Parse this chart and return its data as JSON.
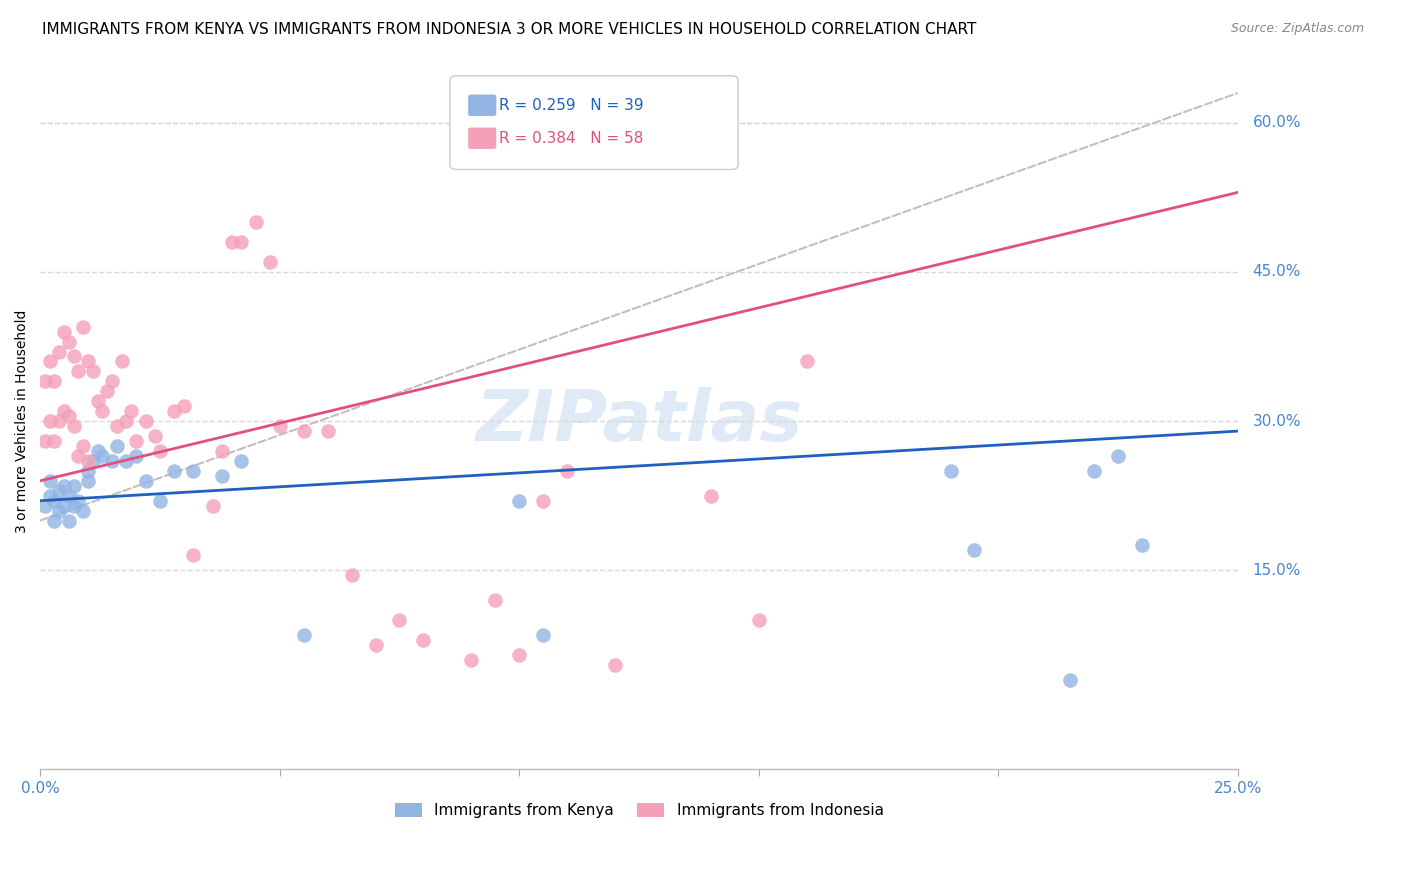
{
  "title": "IMMIGRANTS FROM KENYA VS IMMIGRANTS FROM INDONESIA 3 OR MORE VEHICLES IN HOUSEHOLD CORRELATION CHART",
  "source": "Source: ZipAtlas.com",
  "ylabel_label": "3 or more Vehicles in Household",
  "xlim": [
    0.0,
    0.25
  ],
  "ylim": [
    -0.05,
    0.65
  ],
  "xticks": [
    0.0,
    0.05,
    0.1,
    0.15,
    0.2,
    0.25
  ],
  "yticks": [
    0.15,
    0.3,
    0.45,
    0.6
  ],
  "xtick_labels": [
    "0.0%",
    "",
    "",
    "",
    "",
    "25.0%"
  ],
  "ytick_labels": [
    "15.0%",
    "30.0%",
    "45.0%",
    "60.0%"
  ],
  "kenya_R": 0.259,
  "kenya_N": 39,
  "indonesia_R": 0.384,
  "indonesia_N": 58,
  "kenya_color": "#92b4e3",
  "indonesia_color": "#f4a0b8",
  "kenya_line_color": "#2060c0",
  "indonesia_line_color": "#e05080",
  "diagonal_color": "#c0c0c0",
  "legend_kenya_label": "Immigrants from Kenya",
  "legend_indonesia_label": "Immigrants from Indonesia",
  "kenya_scatter_x": [
    0.001,
    0.002,
    0.002,
    0.003,
    0.003,
    0.004,
    0.004,
    0.005,
    0.005,
    0.006,
    0.006,
    0.007,
    0.007,
    0.008,
    0.009,
    0.01,
    0.01,
    0.011,
    0.012,
    0.013,
    0.015,
    0.016,
    0.018,
    0.02,
    0.022,
    0.025,
    0.028,
    0.032,
    0.038,
    0.042,
    0.055,
    0.1,
    0.105,
    0.19,
    0.195,
    0.215,
    0.22,
    0.225,
    0.23
  ],
  "kenya_scatter_y": [
    0.215,
    0.225,
    0.24,
    0.2,
    0.22,
    0.21,
    0.23,
    0.215,
    0.235,
    0.2,
    0.225,
    0.215,
    0.235,
    0.22,
    0.21,
    0.24,
    0.25,
    0.26,
    0.27,
    0.265,
    0.26,
    0.275,
    0.26,
    0.265,
    0.24,
    0.22,
    0.25,
    0.25,
    0.245,
    0.26,
    0.085,
    0.22,
    0.085,
    0.25,
    0.17,
    0.04,
    0.25,
    0.265,
    0.175
  ],
  "indonesia_scatter_x": [
    0.001,
    0.001,
    0.002,
    0.002,
    0.003,
    0.003,
    0.004,
    0.004,
    0.005,
    0.005,
    0.006,
    0.006,
    0.007,
    0.007,
    0.008,
    0.008,
    0.009,
    0.009,
    0.01,
    0.01,
    0.011,
    0.012,
    0.013,
    0.014,
    0.015,
    0.016,
    0.017,
    0.018,
    0.019,
    0.02,
    0.022,
    0.024,
    0.025,
    0.028,
    0.03,
    0.032,
    0.036,
    0.038,
    0.04,
    0.042,
    0.045,
    0.048,
    0.05,
    0.055,
    0.06,
    0.065,
    0.07,
    0.075,
    0.08,
    0.09,
    0.095,
    0.1,
    0.105,
    0.11,
    0.12,
    0.14,
    0.15,
    0.16
  ],
  "indonesia_scatter_y": [
    0.34,
    0.28,
    0.36,
    0.3,
    0.34,
    0.28,
    0.37,
    0.3,
    0.39,
    0.31,
    0.38,
    0.305,
    0.365,
    0.295,
    0.35,
    0.265,
    0.395,
    0.275,
    0.36,
    0.26,
    0.35,
    0.32,
    0.31,
    0.33,
    0.34,
    0.295,
    0.36,
    0.3,
    0.31,
    0.28,
    0.3,
    0.285,
    0.27,
    0.31,
    0.315,
    0.165,
    0.215,
    0.27,
    0.48,
    0.48,
    0.5,
    0.46,
    0.295,
    0.29,
    0.29,
    0.145,
    0.075,
    0.1,
    0.08,
    0.06,
    0.12,
    0.065,
    0.22,
    0.25,
    0.055,
    0.225,
    0.1,
    0.36
  ],
  "background_color": "#ffffff",
  "grid_color": "#d8d8d8",
  "tick_color": "#4488cc",
  "title_fontsize": 11,
  "axis_label_fontsize": 10,
  "tick_fontsize": 11,
  "legend_fontsize": 11,
  "source_fontsize": 9
}
